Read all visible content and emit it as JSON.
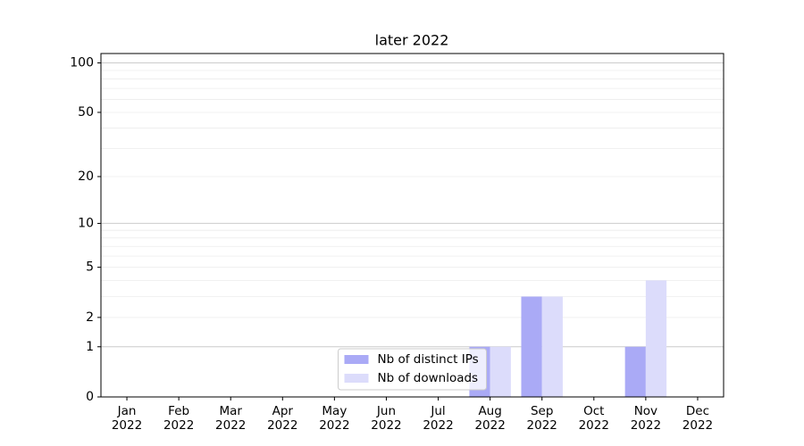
{
  "chart_data": {
    "type": "bar",
    "title": "later 2022",
    "categories": [
      "Jan 2022",
      "Feb 2022",
      "Mar 2022",
      "Apr 2022",
      "May 2022",
      "Jun 2022",
      "Jul 2022",
      "Aug 2022",
      "Sep 2022",
      "Oct 2022",
      "Nov 2022",
      "Dec 2022"
    ],
    "series": [
      {
        "name": "Nb of distinct IPs",
        "color": "#aaaaf6",
        "values": [
          0,
          0,
          0,
          0,
          0,
          0,
          0,
          1,
          3,
          0,
          1,
          0
        ]
      },
      {
        "name": "Nb of downloads",
        "color": "#dcdcfb",
        "values": [
          0,
          0,
          0,
          0,
          0,
          0,
          0,
          1,
          3,
          0,
          4,
          0
        ]
      }
    ],
    "yscale": "log1p",
    "ylim": [
      0,
      114
    ],
    "yticks": [
      0,
      1,
      2,
      5,
      10,
      20,
      50,
      100
    ],
    "grid_major": [
      1,
      10,
      100
    ],
    "grid_minor": [
      2,
      3,
      4,
      5,
      6,
      7,
      8,
      9,
      20,
      30,
      40,
      50,
      60,
      70,
      80,
      90
    ],
    "legend_loc": "lower center"
  }
}
